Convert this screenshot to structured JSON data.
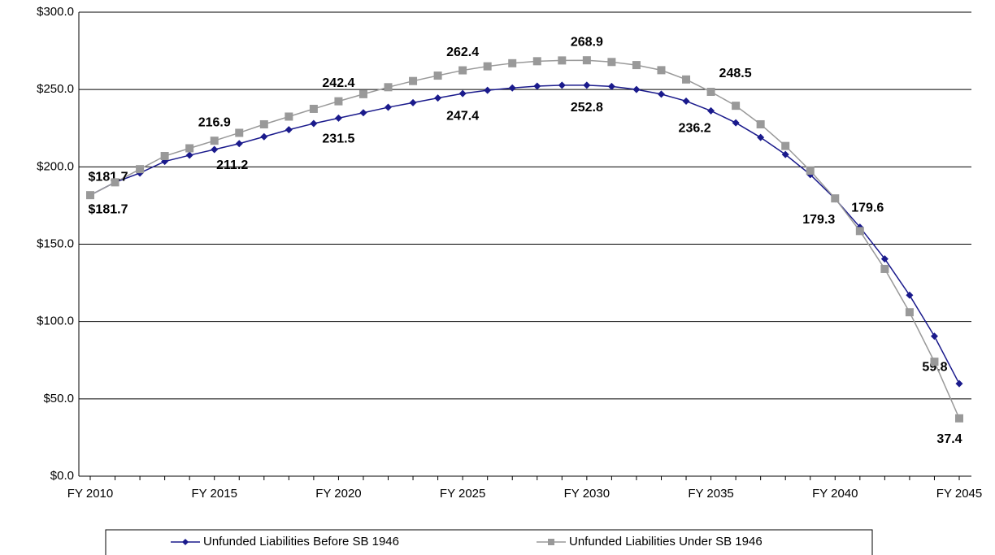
{
  "chart_data": {
    "type": "line",
    "categories": [
      "FY 2010",
      null,
      null,
      null,
      null,
      "FY 2015",
      null,
      null,
      null,
      null,
      "FY 2020",
      null,
      null,
      null,
      null,
      "FY 2025",
      null,
      null,
      null,
      null,
      "FY 2030",
      null,
      null,
      null,
      null,
      "FY 2035",
      null,
      null,
      null,
      null,
      "FY 2040",
      null,
      null,
      null,
      null,
      "FY 2045"
    ],
    "series": [
      {
        "name": "Unfunded Liabilities Before SB 1946",
        "color": "#1a1a8c",
        "marker": "diamond",
        "values": [
          181.7,
          190,
          196,
          203.5,
          207.5,
          211.2,
          215,
          219.5,
          224,
          228,
          231.5,
          235,
          238.5,
          241.5,
          244.5,
          247.4,
          249.5,
          251,
          252.2,
          252.8,
          252.8,
          252,
          250,
          247,
          242.5,
          236.2,
          228.5,
          219,
          208,
          195,
          179.3,
          161,
          140.5,
          117,
          90.5,
          59.8
        ],
        "value_labels": [
          "$181.7",
          null,
          null,
          null,
          null,
          "211.2",
          null,
          null,
          null,
          null,
          "231.5",
          null,
          null,
          null,
          null,
          "247.4",
          null,
          null,
          null,
          null,
          "252.8",
          null,
          null,
          null,
          null,
          "236.2",
          null,
          null,
          null,
          null,
          "179.3",
          null,
          null,
          null,
          null,
          "59.8"
        ]
      },
      {
        "name": "Unfunded Liabilities Under SB 1946",
        "color": "#999999",
        "marker": "square",
        "values": [
          181.7,
          190,
          198.5,
          207,
          212,
          216.9,
          222,
          227.5,
          232.5,
          237.5,
          242.4,
          247,
          251.5,
          255.5,
          259,
          262.4,
          265,
          267,
          268.3,
          268.8,
          268.9,
          267.8,
          265.8,
          262.5,
          256.5,
          248.5,
          239.5,
          227.5,
          213.5,
          197.5,
          179.6,
          158.5,
          134,
          106,
          74,
          37.4
        ],
        "value_labels": [
          "$181.7",
          null,
          null,
          null,
          null,
          "216.9",
          null,
          null,
          null,
          null,
          "242.4",
          null,
          null,
          null,
          null,
          "262.4",
          null,
          null,
          null,
          null,
          "268.9",
          null,
          null,
          null,
          null,
          "248.5",
          null,
          null,
          null,
          null,
          "179.6",
          null,
          null,
          null,
          null,
          "37.4"
        ]
      }
    ],
    "ylim": [
      0,
      300
    ],
    "yticks": [
      {
        "value": 0,
        "label": "$0.0"
      },
      {
        "value": 50,
        "label": "$50.0"
      },
      {
        "value": 100,
        "label": "$100.0"
      },
      {
        "value": 150,
        "label": "$150.0"
      },
      {
        "value": 200,
        "label": "$200.0"
      },
      {
        "value": 250,
        "label": "$250.0"
      },
      {
        "value": 300,
        "label": "$300.0"
      }
    ],
    "grid": true,
    "legend": "bottom"
  }
}
